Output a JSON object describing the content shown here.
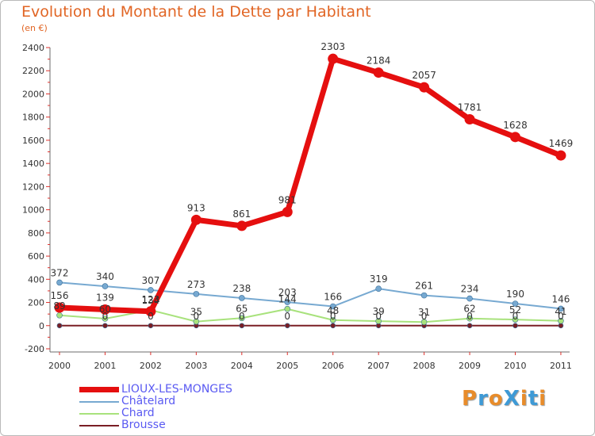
{
  "title": "Evolution du Montant de la Dette par Habitant",
  "subtitle": "(en €)",
  "logo": {
    "text": "ProXiti",
    "colors": [
      "#e88c2a",
      "#3e9ad6",
      "#e88c2a",
      "#3e9ad6",
      "#e88c2a",
      "#3e9ad6",
      "#e88c2a"
    ]
  },
  "chart_data": {
    "type": "line",
    "title": "Evolution du Montant de la Dette par Habitant",
    "subtitle": "(en €)",
    "xlabel": "",
    "ylabel": "",
    "x": [
      "2000",
      "2001",
      "2002",
      "2003",
      "2004",
      "2005",
      "2006",
      "2007",
      "2008",
      "2009",
      "2010",
      "2011"
    ],
    "ylim": [
      -200,
      2400
    ],
    "yticks": [
      -200,
      0,
      200,
      400,
      600,
      800,
      1000,
      1200,
      1400,
      1600,
      1800,
      2000,
      2200,
      2400
    ],
    "grid": false,
    "legend": "bottom-left",
    "series": [
      {
        "name": "Brousse",
        "color": "#7a1e24",
        "width": 2,
        "marker": 3,
        "labels": false,
        "values": [
          0,
          0,
          0,
          0,
          0,
          0,
          0,
          0,
          0,
          0,
          0,
          0
        ]
      },
      {
        "name": "Chard",
        "color": "#a8e27c",
        "width": 2,
        "marker": 3.5,
        "labels": true,
        "values": [
          89,
          60,
          134,
          35,
          65,
          144,
          48,
          39,
          31,
          62,
          52,
          41
        ]
      },
      {
        "name": "Châtelard",
        "color": "#77a9d1",
        "width": 2,
        "marker": 3.5,
        "labels": true,
        "values": [
          372,
          340,
          307,
          273,
          238,
          203,
          166,
          319,
          261,
          234,
          190,
          146
        ]
      },
      {
        "name": "LIOUX-LES-MONGES",
        "color": "#e50f0f",
        "width": 7,
        "marker": 6.5,
        "labels": true,
        "values": [
          156,
          139,
          123,
          913,
          861,
          981,
          2303,
          2184,
          2057,
          1781,
          1628,
          1469
        ]
      }
    ],
    "extra_labels": [
      "0",
      "0",
      "0",
      "0",
      "0",
      "0",
      "0",
      "0",
      "0",
      "0",
      "0",
      "0"
    ]
  },
  "legend": [
    {
      "name": "LIOUX-LES-MONGES",
      "color": "#e50f0f",
      "thickness": 7
    },
    {
      "name": "Châtelard",
      "color": "#77a9d1",
      "thickness": 2
    },
    {
      "name": "Chard",
      "color": "#a8e27c",
      "thickness": 2
    },
    {
      "name": "Brousse",
      "color": "#7a1e24",
      "thickness": 2
    }
  ]
}
